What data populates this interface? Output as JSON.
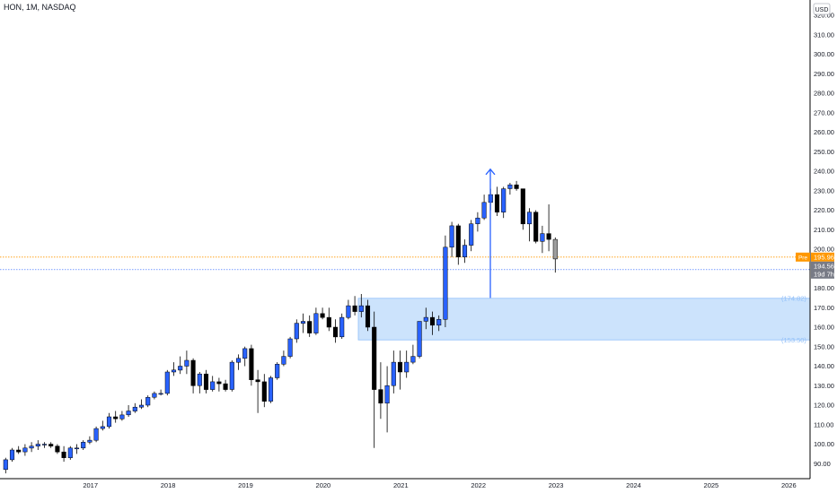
{
  "header": {
    "title": "HON, 1M, NASDAQ"
  },
  "price_axis": {
    "currency_label": "USD"
  },
  "markers": {
    "pre_label": "Pre",
    "pre_price": "195.96",
    "last_price": "194.56",
    "countdown": "19d 7h"
  },
  "zone": {
    "top_label": "174.82",
    "bottom_label": "153.50"
  },
  "colors": {
    "up_candle": "#2962ff",
    "down_candle": "#000000",
    "zone_fill": "#bbd9fb",
    "zone_border": "#90bff9",
    "arrow": "#2962ff",
    "pre_line": "#ff9800",
    "last_line": "#2962ff"
  },
  "chart_data": {
    "type": "candlestick",
    "ylim": [
      85,
      325
    ],
    "y_ticks": [
      90,
      100,
      110,
      120,
      130,
      140,
      150,
      160,
      170,
      180,
      190,
      200,
      210,
      220,
      230,
      240,
      250,
      260,
      270,
      280,
      290,
      300,
      310,
      320
    ],
    "x_ticks": [
      "2017",
      "2018",
      "2019",
      "2020",
      "2021",
      "2022",
      "2023",
      "2024",
      "2025",
      "2026"
    ],
    "zone": [
      153.5,
      174.82
    ],
    "pre_price": 195.96,
    "last_price": 194.56,
    "arrow": {
      "from": 175,
      "to": 241
    },
    "series": [
      {
        "o": 87,
        "h": 93,
        "l": 85,
        "c": 92
      },
      {
        "o": 92,
        "h": 98,
        "l": 91,
        "c": 97
      },
      {
        "o": 97,
        "h": 99,
        "l": 95,
        "c": 96
      },
      {
        "o": 96,
        "h": 100,
        "l": 94,
        "c": 98
      },
      {
        "o": 98,
        "h": 101,
        "l": 96,
        "c": 99
      },
      {
        "o": 99,
        "h": 102,
        "l": 97,
        "c": 100
      },
      {
        "o": 100,
        "h": 101,
        "l": 98,
        "c": 100
      },
      {
        "o": 100,
        "h": 101,
        "l": 98,
        "c": 99
      },
      {
        "o": 99,
        "h": 100,
        "l": 95,
        "c": 96
      },
      {
        "o": 96,
        "h": 99,
        "l": 91,
        "c": 93
      },
      {
        "o": 93,
        "h": 99,
        "l": 92,
        "c": 98
      },
      {
        "o": 98,
        "h": 100,
        "l": 95,
        "c": 98
      },
      {
        "o": 98,
        "h": 102,
        "l": 97,
        "c": 101
      },
      {
        "o": 101,
        "h": 104,
        "l": 100,
        "c": 102
      },
      {
        "o": 102,
        "h": 109,
        "l": 101,
        "c": 108
      },
      {
        "o": 108,
        "h": 112,
        "l": 107,
        "c": 109
      },
      {
        "o": 109,
        "h": 116,
        "l": 108,
        "c": 114
      },
      {
        "o": 114,
        "h": 117,
        "l": 111,
        "c": 113
      },
      {
        "o": 113,
        "h": 117,
        "l": 112,
        "c": 115
      },
      {
        "o": 115,
        "h": 120,
        "l": 114,
        "c": 117
      },
      {
        "o": 117,
        "h": 121,
        "l": 116,
        "c": 119
      },
      {
        "o": 119,
        "h": 123,
        "l": 118,
        "c": 120
      },
      {
        "o": 120,
        "h": 125,
        "l": 119,
        "c": 124
      },
      {
        "o": 124,
        "h": 127,
        "l": 123,
        "c": 126
      },
      {
        "o": 126,
        "h": 128,
        "l": 125,
        "c": 126
      },
      {
        "o": 126,
        "h": 138,
        "l": 125,
        "c": 137
      },
      {
        "o": 137,
        "h": 142,
        "l": 135,
        "c": 138
      },
      {
        "o": 138,
        "h": 145,
        "l": 136,
        "c": 140
      },
      {
        "o": 140,
        "h": 148,
        "l": 136,
        "c": 143
      },
      {
        "o": 143,
        "h": 144,
        "l": 126,
        "c": 130
      },
      {
        "o": 130,
        "h": 137,
        "l": 126,
        "c": 136
      },
      {
        "o": 136,
        "h": 138,
        "l": 126,
        "c": 128
      },
      {
        "o": 128,
        "h": 135,
        "l": 127,
        "c": 132
      },
      {
        "o": 132,
        "h": 134,
        "l": 127,
        "c": 131
      },
      {
        "o": 131,
        "h": 133,
        "l": 127,
        "c": 128
      },
      {
        "o": 128,
        "h": 143,
        "l": 127,
        "c": 142
      },
      {
        "o": 142,
        "h": 146,
        "l": 138,
        "c": 144
      },
      {
        "o": 144,
        "h": 150,
        "l": 140,
        "c": 149
      },
      {
        "o": 149,
        "h": 151,
        "l": 130,
        "c": 133
      },
      {
        "o": 133,
        "h": 138,
        "l": 116,
        "c": 132
      },
      {
        "o": 132,
        "h": 136,
        "l": 119,
        "c": 122
      },
      {
        "o": 122,
        "h": 135,
        "l": 121,
        "c": 134
      },
      {
        "o": 134,
        "h": 142,
        "l": 133,
        "c": 141
      },
      {
        "o": 141,
        "h": 148,
        "l": 140,
        "c": 145
      },
      {
        "o": 145,
        "h": 155,
        "l": 144,
        "c": 154
      },
      {
        "o": 154,
        "h": 164,
        "l": 152,
        "c": 162
      },
      {
        "o": 162,
        "h": 167,
        "l": 157,
        "c": 163
      },
      {
        "o": 163,
        "h": 166,
        "l": 155,
        "c": 157
      },
      {
        "o": 157,
        "h": 170,
        "l": 156,
        "c": 167
      },
      {
        "o": 167,
        "h": 170,
        "l": 164,
        "c": 165
      },
      {
        "o": 165,
        "h": 170,
        "l": 158,
        "c": 160
      },
      {
        "o": 160,
        "h": 164,
        "l": 152,
        "c": 155
      },
      {
        "o": 155,
        "h": 167,
        "l": 154,
        "c": 165
      },
      {
        "o": 165,
        "h": 174,
        "l": 164,
        "c": 171
      },
      {
        "o": 171,
        "h": 176,
        "l": 166,
        "c": 168
      },
      {
        "o": 168,
        "h": 177,
        "l": 165,
        "c": 171
      },
      {
        "o": 171,
        "h": 174,
        "l": 158,
        "c": 160
      },
      {
        "o": 160,
        "h": 168,
        "l": 98,
        "c": 128
      },
      {
        "o": 128,
        "h": 142,
        "l": 113,
        "c": 121
      },
      {
        "o": 121,
        "h": 140,
        "l": 106,
        "c": 130
      },
      {
        "o": 130,
        "h": 148,
        "l": 126,
        "c": 142
      },
      {
        "o": 142,
        "h": 148,
        "l": 128,
        "c": 137
      },
      {
        "o": 137,
        "h": 148,
        "l": 134,
        "c": 142
      },
      {
        "o": 142,
        "h": 151,
        "l": 141,
        "c": 145
      },
      {
        "o": 145,
        "h": 163,
        "l": 144,
        "c": 163
      },
      {
        "o": 163,
        "h": 170,
        "l": 159,
        "c": 165
      },
      {
        "o": 165,
        "h": 168,
        "l": 156,
        "c": 161
      },
      {
        "o": 161,
        "h": 166,
        "l": 158,
        "c": 164
      },
      {
        "o": 164,
        "h": 207,
        "l": 160,
        "c": 201
      },
      {
        "o": 201,
        "h": 214,
        "l": 196,
        "c": 212
      },
      {
        "o": 212,
        "h": 213,
        "l": 192,
        "c": 196
      },
      {
        "o": 196,
        "h": 205,
        "l": 193,
        "c": 202
      },
      {
        "o": 202,
        "h": 215,
        "l": 199,
        "c": 213
      },
      {
        "o": 213,
        "h": 219,
        "l": 209,
        "c": 216
      },
      {
        "o": 216,
        "h": 228,
        "l": 215,
        "c": 224
      },
      {
        "o": 224,
        "h": 231,
        "l": 220,
        "c": 228
      },
      {
        "o": 228,
        "h": 232,
        "l": 217,
        "c": 219
      },
      {
        "o": 219,
        "h": 232,
        "l": 216,
        "c": 231
      },
      {
        "o": 231,
        "h": 234,
        "l": 228,
        "c": 233
      },
      {
        "o": 233,
        "h": 235,
        "l": 230,
        "c": 231
      },
      {
        "o": 231,
        "h": 231,
        "l": 210,
        "c": 213
      },
      {
        "o": 213,
        "h": 221,
        "l": 204,
        "c": 219
      },
      {
        "o": 219,
        "h": 220,
        "l": 203,
        "c": 204
      },
      {
        "o": 204,
        "h": 212,
        "l": 198,
        "c": 208
      },
      {
        "o": 208,
        "h": 223,
        "l": 199,
        "c": 205
      },
      {
        "o": 205,
        "h": 206,
        "l": 188,
        "c": 195
      }
    ]
  }
}
